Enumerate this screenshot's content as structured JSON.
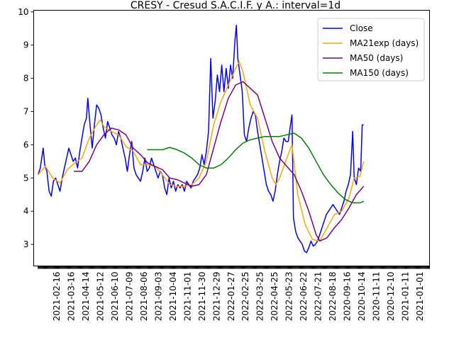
{
  "chart_data": {
    "type": "line",
    "title": "CRESY - Cresud S.A.C.I.F. y A.: interval=1d",
    "xlabel": "",
    "ylabel": "",
    "ylim": [
      2.35,
      10.05
    ],
    "yticks": [
      3,
      4,
      5,
      6,
      7,
      8,
      9,
      10
    ],
    "grid": false,
    "legend_placement": "top-right",
    "x_tick_labels": [
      "2021-02-16",
      "2021-03-16",
      "2021-04-14",
      "2021-05-12",
      "2021-06-10",
      "2021-07-09",
      "2021-08-06",
      "2021-09-03",
      "2021-10-04",
      "2021-11-01",
      "2021-11-30",
      "2021-12-29",
      "2022-01-27",
      "2022-02-25",
      "2022-03-25",
      "2022-04-25",
      "2022-05-23",
      "2022-06-22",
      "2022-07-21",
      "2022-08-18",
      "2020-09-16",
      "2020-10-14",
      "2020-11-11",
      "2020-12-10",
      "2021-01-11",
      "2021-01-01"
    ],
    "xlim": [
      -6,
      535
    ],
    "series": [
      {
        "name": "Close",
        "color": "#0000ff",
        "points": [
          [
            0,
            5.1
          ],
          [
            3,
            5.3
          ],
          [
            5,
            5.6
          ],
          [
            7,
            5.9
          ],
          [
            9,
            5.4
          ],
          [
            12,
            5.2
          ],
          [
            15,
            4.6
          ],
          [
            18,
            4.45
          ],
          [
            21,
            4.9
          ],
          [
            24,
            5.0
          ],
          [
            27,
            4.8
          ],
          [
            30,
            4.6
          ],
          [
            33,
            5.0
          ],
          [
            36,
            5.3
          ],
          [
            39,
            5.6
          ],
          [
            42,
            5.9
          ],
          [
            45,
            5.7
          ],
          [
            48,
            5.5
          ],
          [
            51,
            5.6
          ],
          [
            54,
            5.3
          ],
          [
            57,
            5.8
          ],
          [
            60,
            6.2
          ],
          [
            63,
            6.6
          ],
          [
            66,
            6.8
          ],
          [
            68,
            7.4
          ],
          [
            71,
            6.6
          ],
          [
            74,
            5.9
          ],
          [
            77,
            6.6
          ],
          [
            80,
            7.2
          ],
          [
            83,
            7.1
          ],
          [
            86,
            6.9
          ],
          [
            89,
            6.5
          ],
          [
            92,
            6.2
          ],
          [
            95,
            6.7
          ],
          [
            98,
            6.5
          ],
          [
            101,
            6.3
          ],
          [
            104,
            6.2
          ],
          [
            107,
            6.0
          ],
          [
            110,
            6.4
          ],
          [
            113,
            6.2
          ],
          [
            116,
            5.9
          ],
          [
            119,
            5.6
          ],
          [
            122,
            5.2
          ],
          [
            125,
            5.7
          ],
          [
            128,
            6.1
          ],
          [
            131,
            5.3
          ],
          [
            134,
            5.1
          ],
          [
            137,
            5.0
          ],
          [
            140,
            4.9
          ],
          [
            143,
            5.2
          ],
          [
            146,
            5.6
          ],
          [
            149,
            5.2
          ],
          [
            152,
            5.3
          ],
          [
            155,
            5.6
          ],
          [
            158,
            5.4
          ],
          [
            161,
            5.2
          ],
          [
            164,
            5.0
          ],
          [
            167,
            5.2
          ],
          [
            170,
            5.1
          ],
          [
            173,
            4.7
          ],
          [
            176,
            4.5
          ],
          [
            179,
            5.0
          ],
          [
            182,
            4.7
          ],
          [
            185,
            4.9
          ],
          [
            188,
            4.6
          ],
          [
            191,
            4.8
          ],
          [
            194,
            4.7
          ],
          [
            197,
            4.8
          ],
          [
            200,
            4.6
          ],
          [
            203,
            4.9
          ],
          [
            206,
            4.8
          ],
          [
            209,
            4.7
          ],
          [
            212,
            4.9
          ],
          [
            215,
            5.0
          ],
          [
            218,
            5.1
          ],
          [
            221,
            5.3
          ],
          [
            224,
            5.7
          ],
          [
            227,
            5.4
          ],
          [
            230,
            5.8
          ],
          [
            233,
            6.4
          ],
          [
            236,
            8.6
          ],
          [
            239,
            6.8
          ],
          [
            242,
            7.3
          ],
          [
            245,
            8.1
          ],
          [
            248,
            7.6
          ],
          [
            251,
            8.4
          ],
          [
            254,
            7.6
          ],
          [
            257,
            8.3
          ],
          [
            260,
            7.7
          ],
          [
            263,
            8.4
          ],
          [
            266,
            8.0
          ],
          [
            269,
            9.1
          ],
          [
            271,
            9.6
          ],
          [
            273,
            8.6
          ],
          [
            276,
            8.1
          ],
          [
            279,
            7.6
          ],
          [
            282,
            6.3
          ],
          [
            285,
            6.1
          ],
          [
            288,
            6.5
          ],
          [
            291,
            6.8
          ],
          [
            294,
            7.0
          ],
          [
            297,
            6.9
          ],
          [
            300,
            6.4
          ],
          [
            303,
            6.0
          ],
          [
            306,
            5.6
          ],
          [
            309,
            5.2
          ],
          [
            312,
            4.8
          ],
          [
            315,
            4.6
          ],
          [
            318,
            4.5
          ],
          [
            321,
            4.3
          ],
          [
            324,
            4.6
          ],
          [
            327,
            5.1
          ],
          [
            330,
            5.5
          ],
          [
            333,
            5.8
          ],
          [
            336,
            6.2
          ],
          [
            339,
            6.1
          ],
          [
            342,
            6.1
          ],
          [
            345,
            6.6
          ],
          [
            347,
            6.9
          ],
          [
            349,
            3.8
          ],
          [
            352,
            3.4
          ],
          [
            355,
            3.2
          ],
          [
            358,
            3.1
          ],
          [
            361,
            3.0
          ],
          [
            364,
            2.8
          ],
          [
            367,
            2.75
          ],
          [
            370,
            2.9
          ],
          [
            373,
            3.1
          ],
          [
            376,
            2.95
          ],
          [
            379,
            3.0
          ],
          [
            382,
            3.1
          ],
          [
            385,
            3.3
          ],
          [
            388,
            3.5
          ],
          [
            391,
            3.7
          ],
          [
            394,
            3.9
          ],
          [
            397,
            4.0
          ],
          [
            400,
            4.1
          ],
          [
            403,
            4.2
          ],
          [
            406,
            4.1
          ],
          [
            409,
            4.0
          ],
          [
            412,
            3.9
          ],
          [
            415,
            4.1
          ],
          [
            418,
            4.3
          ],
          [
            421,
            4.6
          ],
          [
            424,
            4.8
          ],
          [
            427,
            5.1
          ],
          [
            430,
            6.4
          ],
          [
            432,
            5.0
          ],
          [
            435,
            4.8
          ],
          [
            438,
            5.3
          ],
          [
            441,
            5.2
          ],
          [
            443,
            6.6
          ],
          [
            445,
            6.6
          ]
        ]
      },
      {
        "name": "MA21exp (days)",
        "color": "#ffa500",
        "points": [
          [
            0,
            5.1
          ],
          [
            10,
            5.35
          ],
          [
            20,
            5.0
          ],
          [
            30,
            4.85
          ],
          [
            40,
            5.25
          ],
          [
            50,
            5.45
          ],
          [
            60,
            5.6
          ],
          [
            70,
            6.2
          ],
          [
            80,
            6.6
          ],
          [
            85,
            6.75
          ],
          [
            90,
            6.55
          ],
          [
            100,
            6.4
          ],
          [
            110,
            6.3
          ],
          [
            120,
            5.95
          ],
          [
            130,
            5.8
          ],
          [
            140,
            5.4
          ],
          [
            150,
            5.4
          ],
          [
            160,
            5.35
          ],
          [
            170,
            5.1
          ],
          [
            180,
            4.8
          ],
          [
            190,
            4.75
          ],
          [
            200,
            4.75
          ],
          [
            210,
            4.8
          ],
          [
            220,
            5.0
          ],
          [
            230,
            5.5
          ],
          [
            240,
            6.6
          ],
          [
            250,
            7.3
          ],
          [
            260,
            7.8
          ],
          [
            270,
            8.3
          ],
          [
            275,
            8.5
          ],
          [
            280,
            8.2
          ],
          [
            290,
            7.2
          ],
          [
            300,
            6.8
          ],
          [
            310,
            5.8
          ],
          [
            320,
            5.0
          ],
          [
            325,
            4.8
          ],
          [
            330,
            5.0
          ],
          [
            340,
            5.6
          ],
          [
            347,
            6.0
          ],
          [
            355,
            4.5
          ],
          [
            365,
            3.6
          ],
          [
            375,
            3.15
          ],
          [
            385,
            3.1
          ],
          [
            395,
            3.5
          ],
          [
            405,
            3.9
          ],
          [
            415,
            4.0
          ],
          [
            425,
            4.4
          ],
          [
            432,
            5.0
          ],
          [
            440,
            5.05
          ],
          [
            445,
            5.5
          ]
        ]
      },
      {
        "name": "MA50 (days)",
        "color": "#800080",
        "points": [
          [
            49,
            5.2
          ],
          [
            60,
            5.2
          ],
          [
            70,
            5.5
          ],
          [
            80,
            6.0
          ],
          [
            90,
            6.3
          ],
          [
            100,
            6.5
          ],
          [
            110,
            6.45
          ],
          [
            120,
            6.3
          ],
          [
            130,
            5.9
          ],
          [
            140,
            5.7
          ],
          [
            150,
            5.45
          ],
          [
            160,
            5.35
          ],
          [
            170,
            5.25
          ],
          [
            180,
            5.0
          ],
          [
            190,
            4.95
          ],
          [
            200,
            4.85
          ],
          [
            210,
            4.75
          ],
          [
            220,
            4.8
          ],
          [
            230,
            5.1
          ],
          [
            240,
            5.9
          ],
          [
            250,
            6.7
          ],
          [
            260,
            7.4
          ],
          [
            270,
            7.8
          ],
          [
            280,
            7.9
          ],
          [
            290,
            7.7
          ],
          [
            300,
            7.5
          ],
          [
            310,
            6.8
          ],
          [
            320,
            6.1
          ],
          [
            330,
            5.6
          ],
          [
            340,
            5.35
          ],
          [
            350,
            5.1
          ],
          [
            360,
            4.6
          ],
          [
            370,
            4.0
          ],
          [
            380,
            3.3
          ],
          [
            385,
            3.1
          ],
          [
            395,
            3.2
          ],
          [
            405,
            3.5
          ],
          [
            415,
            3.75
          ],
          [
            425,
            4.1
          ],
          [
            435,
            4.5
          ],
          [
            445,
            4.75
          ]
        ]
      },
      {
        "name": "MA150 (days)",
        "color": "#008000",
        "points": [
          [
            149,
            5.85
          ],
          [
            160,
            5.85
          ],
          [
            170,
            5.85
          ],
          [
            180,
            5.92
          ],
          [
            190,
            5.85
          ],
          [
            200,
            5.75
          ],
          [
            210,
            5.6
          ],
          [
            220,
            5.4
          ],
          [
            230,
            5.3
          ],
          [
            240,
            5.3
          ],
          [
            250,
            5.4
          ],
          [
            260,
            5.6
          ],
          [
            270,
            5.85
          ],
          [
            280,
            6.05
          ],
          [
            290,
            6.15
          ],
          [
            300,
            6.2
          ],
          [
            310,
            6.25
          ],
          [
            320,
            6.25
          ],
          [
            330,
            6.25
          ],
          [
            340,
            6.3
          ],
          [
            350,
            6.35
          ],
          [
            360,
            6.2
          ],
          [
            370,
            5.9
          ],
          [
            380,
            5.5
          ],
          [
            390,
            5.1
          ],
          [
            400,
            4.8
          ],
          [
            410,
            4.55
          ],
          [
            420,
            4.35
          ],
          [
            430,
            4.25
          ],
          [
            440,
            4.25
          ],
          [
            445,
            4.3
          ]
        ]
      }
    ]
  }
}
